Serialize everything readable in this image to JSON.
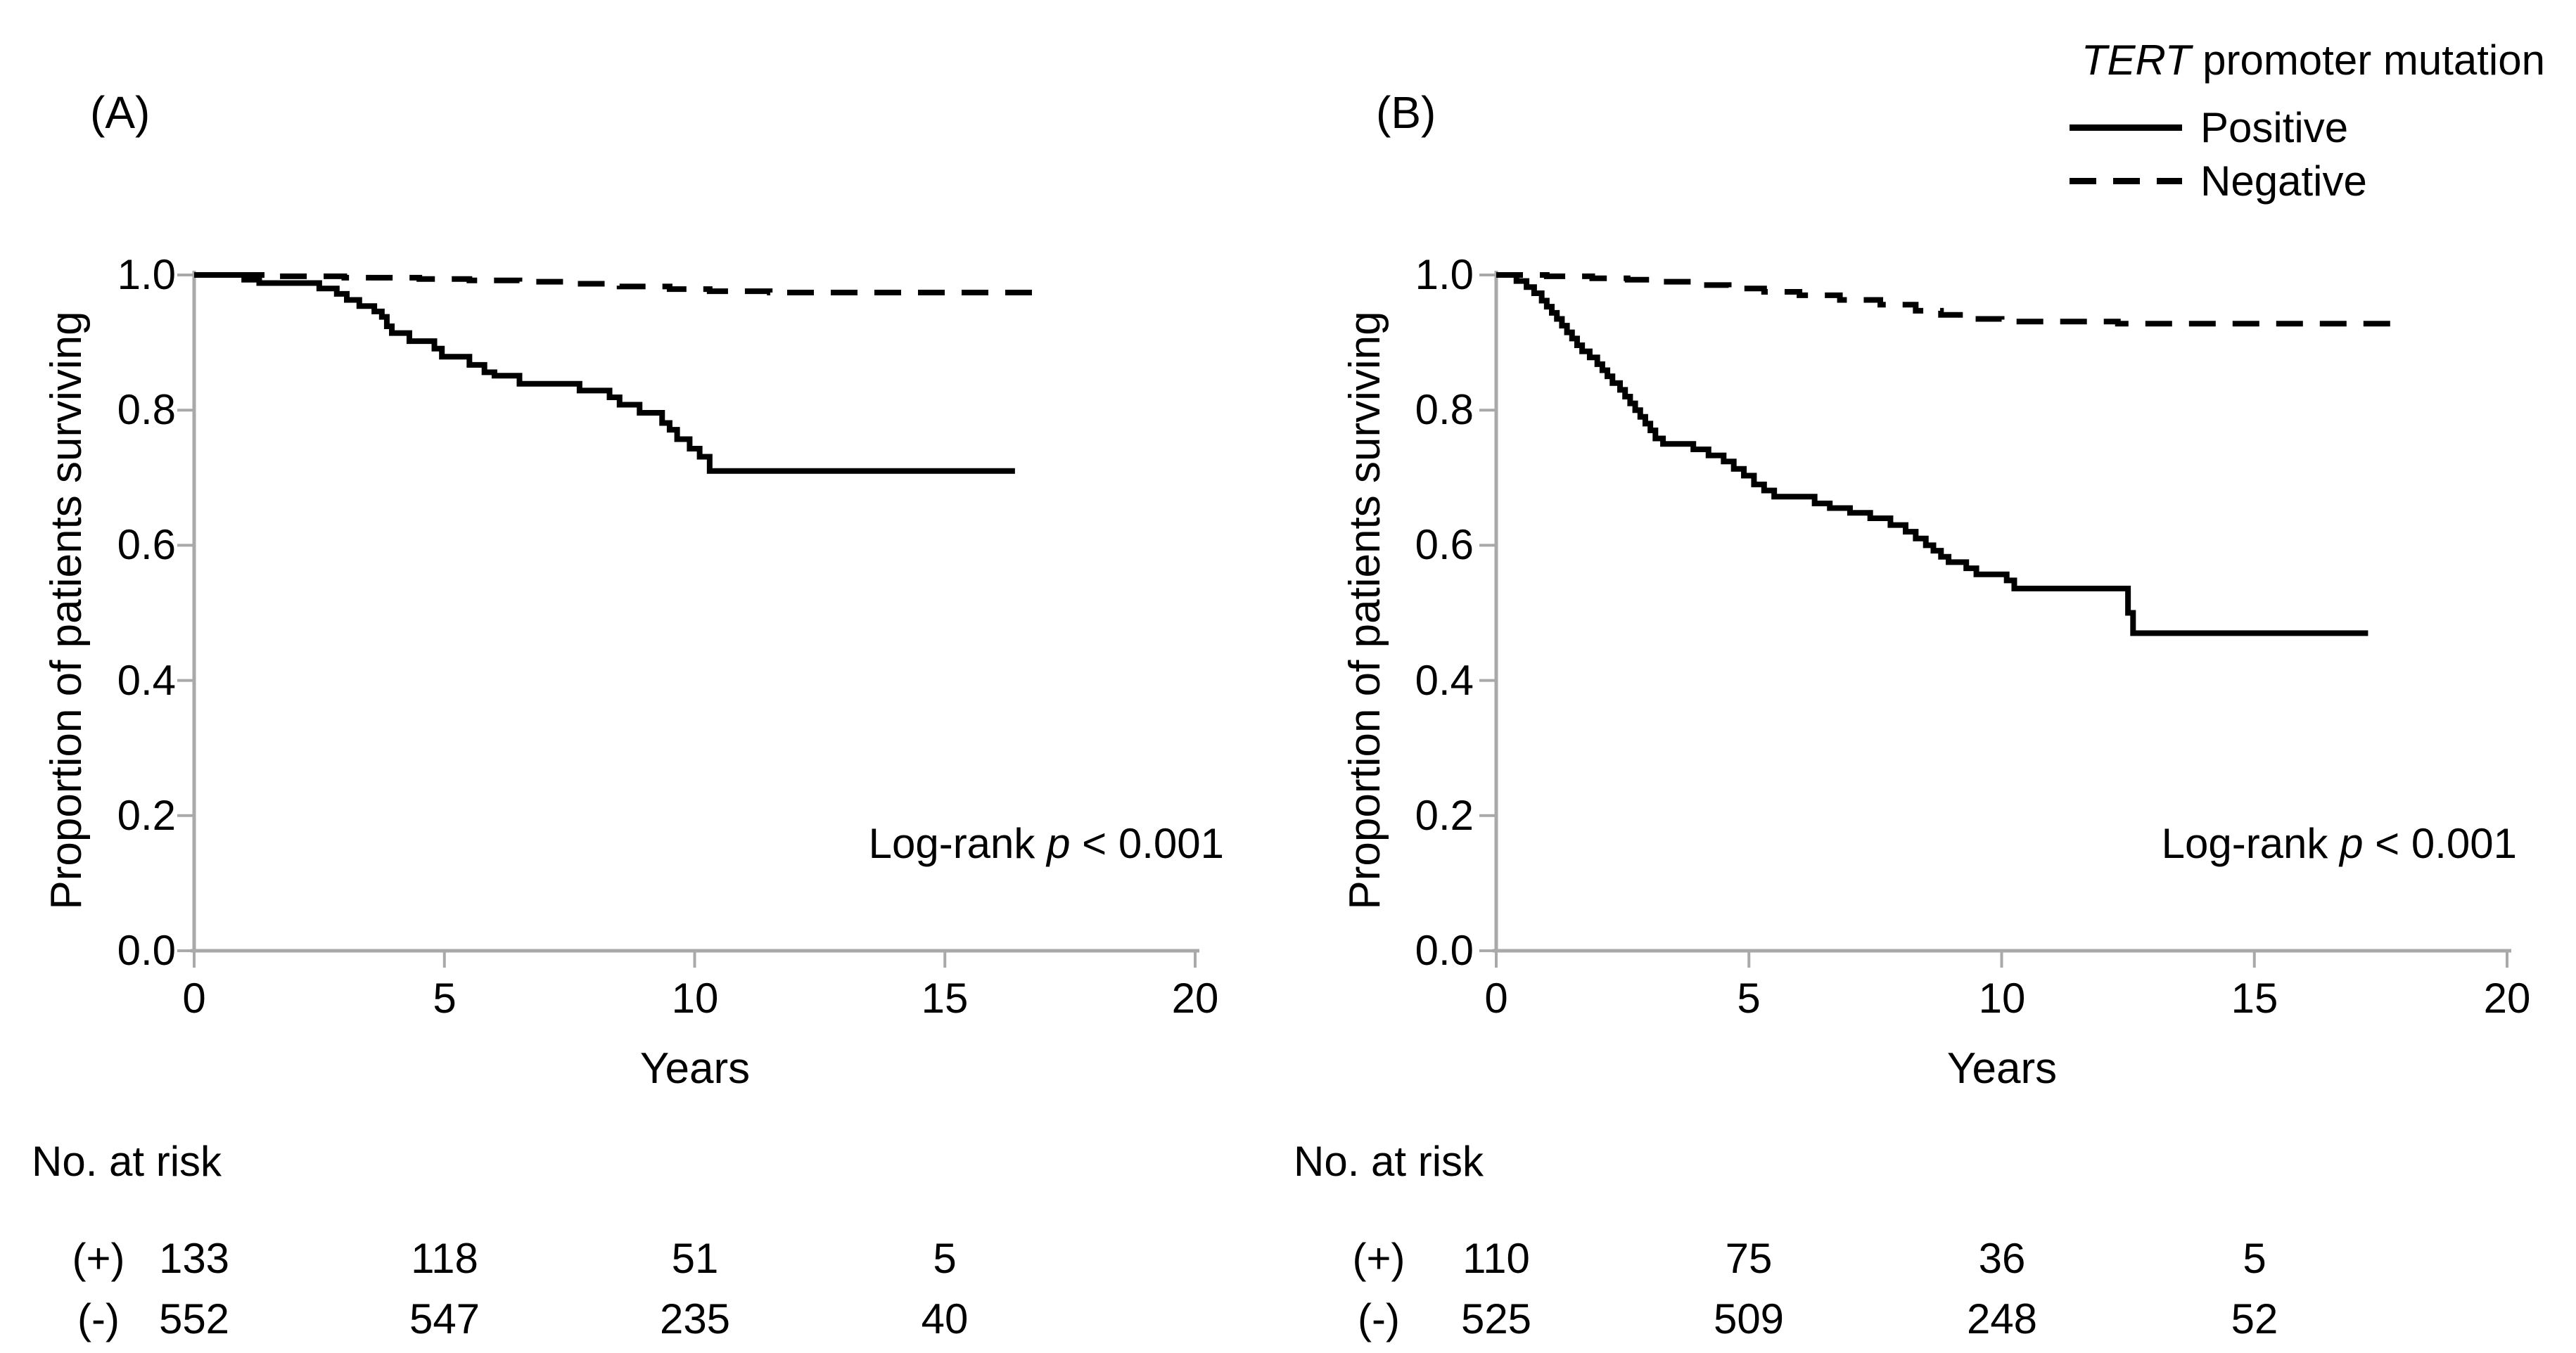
{
  "colors": {
    "curve": "#000000",
    "axis": "#a9a9a9",
    "text": "#000000",
    "background": "#ffffff"
  },
  "legend": {
    "title_italic": "TERT",
    "title_rest": " promoter mutation",
    "items": [
      {
        "label": "Positive",
        "line": "solid"
      },
      {
        "label": "Negative",
        "line": "dashed"
      }
    ]
  },
  "chart_data": [
    {
      "panel_label": "(A)",
      "type": "line",
      "subtype": "kaplan-meier-step",
      "xlabel": "Years",
      "ylabel": "Proportion of patients surviving",
      "xlim": [
        0,
        20
      ],
      "ylim": [
        0.0,
        1.0
      ],
      "grid": false,
      "legend_position": "top-right-of-figure",
      "x_ticks": {
        "values": [
          0,
          5,
          10,
          15,
          20
        ],
        "labels": [
          "0",
          "5",
          "10",
          "15",
          "20"
        ]
      },
      "y_ticks": {
        "values": [
          1.0,
          0.8,
          0.6,
          0.4,
          0.2,
          0.0
        ],
        "labels": [
          "1.0",
          "0.8",
          "0.6",
          "0.4",
          "0.2",
          "0.0"
        ]
      },
      "annotation": {
        "prefix": "Log-rank ",
        "italic": "p",
        "suffix": " < 0.001"
      },
      "series": [
        {
          "name": "Positive",
          "line": "solid",
          "points": [
            [
              0,
              1
            ],
            [
              1,
              0.993
            ],
            [
              1.3,
              0.988
            ],
            [
              2.5,
              0.98
            ],
            [
              2.85,
              0.972
            ],
            [
              3.05,
              0.963
            ],
            [
              3.3,
              0.954
            ],
            [
              3.6,
              0.946
            ],
            [
              3.75,
              0.938
            ],
            [
              3.85,
              0.924
            ],
            [
              3.95,
              0.914
            ],
            [
              4.3,
              0.902
            ],
            [
              4.8,
              0.891
            ],
            [
              4.95,
              0.879
            ],
            [
              5.5,
              0.867
            ],
            [
              5.8,
              0.856
            ],
            [
              6.0,
              0.851
            ],
            [
              6.5,
              0.839
            ],
            [
              7.7,
              0.829
            ],
            [
              8.3,
              0.819
            ],
            [
              8.5,
              0.808
            ],
            [
              8.9,
              0.796
            ],
            [
              9.35,
              0.781
            ],
            [
              9.5,
              0.771
            ],
            [
              9.65,
              0.757
            ],
            [
              9.9,
              0.743
            ],
            [
              10.1,
              0.731
            ],
            [
              10.3,
              0.71
            ],
            [
              16.4,
              0.71
            ]
          ]
        },
        {
          "name": "Negative",
          "line": "dashed",
          "points": [
            [
              0,
              1
            ],
            [
              1.6,
              0.998
            ],
            [
              3.0,
              0.996
            ],
            [
              4.5,
              0.994
            ],
            [
              5.5,
              0.992
            ],
            [
              6.5,
              0.99
            ],
            [
              7.5,
              0.987
            ],
            [
              8.5,
              0.983
            ],
            [
              9.5,
              0.979
            ],
            [
              10.3,
              0.976
            ],
            [
              11.5,
              0.974
            ],
            [
              16.8,
              0.974
            ]
          ]
        }
      ],
      "risk_table": {
        "title": "No. at risk",
        "time_points": [
          0,
          5,
          10,
          15
        ],
        "rows": [
          {
            "label": "(+)",
            "values": [
              "133",
              "118",
              "51",
              "5"
            ]
          },
          {
            "label": "(-)",
            "values": [
              "552",
              "547",
              "235",
              "40"
            ]
          }
        ]
      }
    },
    {
      "panel_label": "(B)",
      "type": "line",
      "subtype": "kaplan-meier-step",
      "xlabel": "Years",
      "ylabel": "Proportion of patients surviving",
      "xlim": [
        0,
        20
      ],
      "ylim": [
        0.0,
        1.0
      ],
      "grid": false,
      "x_ticks": {
        "values": [
          0,
          5,
          10,
          15,
          20
        ],
        "labels": [
          "0",
          "5",
          "10",
          "15",
          "20"
        ]
      },
      "y_ticks": {
        "values": [
          1.0,
          0.8,
          0.6,
          0.4,
          0.2,
          0.0
        ],
        "labels": [
          "1.0",
          "0.8",
          "0.6",
          "0.4",
          "0.2",
          "0.0"
        ]
      },
      "annotation": {
        "prefix": "Log-rank ",
        "italic": "p",
        "suffix": " < 0.001"
      },
      "series": [
        {
          "name": "Positive",
          "line": "solid",
          "points": [
            [
              0,
              1
            ],
            [
              0.4,
              0.991
            ],
            [
              0.6,
              0.982
            ],
            [
              0.75,
              0.973
            ],
            [
              0.9,
              0.962
            ],
            [
              1.0,
              0.953
            ],
            [
              1.1,
              0.944
            ],
            [
              1.2,
              0.935
            ],
            [
              1.3,
              0.925
            ],
            [
              1.4,
              0.915
            ],
            [
              1.5,
              0.906
            ],
            [
              1.6,
              0.896
            ],
            [
              1.7,
              0.887
            ],
            [
              1.85,
              0.878
            ],
            [
              2.0,
              0.868
            ],
            [
              2.1,
              0.859
            ],
            [
              2.2,
              0.85
            ],
            [
              2.3,
              0.84
            ],
            [
              2.45,
              0.83
            ],
            [
              2.55,
              0.82
            ],
            [
              2.65,
              0.81
            ],
            [
              2.75,
              0.8
            ],
            [
              2.85,
              0.79
            ],
            [
              2.95,
              0.78
            ],
            [
              3.05,
              0.77
            ],
            [
              3.15,
              0.758
            ],
            [
              3.3,
              0.75
            ],
            [
              3.9,
              0.742
            ],
            [
              4.2,
              0.733
            ],
            [
              4.5,
              0.724
            ],
            [
              4.7,
              0.713
            ],
            [
              4.9,
              0.703
            ],
            [
              5.1,
              0.69
            ],
            [
              5.3,
              0.681
            ],
            [
              5.5,
              0.672
            ],
            [
              6.3,
              0.662
            ],
            [
              6.6,
              0.655
            ],
            [
              7.0,
              0.648
            ],
            [
              7.4,
              0.64
            ],
            [
              7.8,
              0.63
            ],
            [
              8.1,
              0.62
            ],
            [
              8.3,
              0.61
            ],
            [
              8.5,
              0.6
            ],
            [
              8.65,
              0.592
            ],
            [
              8.8,
              0.583
            ],
            [
              8.95,
              0.575
            ],
            [
              9.3,
              0.566
            ],
            [
              9.5,
              0.557
            ],
            [
              10.1,
              0.548
            ],
            [
              10.25,
              0.536
            ],
            [
              12.5,
              0.5
            ],
            [
              12.6,
              0.47
            ],
            [
              17.25,
              0.47
            ]
          ]
        },
        {
          "name": "Negative",
          "line": "dashed",
          "points": [
            [
              0,
              1
            ],
            [
              1.0,
              0.998
            ],
            [
              1.9,
              0.995
            ],
            [
              2.6,
              0.993
            ],
            [
              3.3,
              0.99
            ],
            [
              4.0,
              0.985
            ],
            [
              4.6,
              0.98
            ],
            [
              5.3,
              0.975
            ],
            [
              6.0,
              0.97
            ],
            [
              6.8,
              0.963
            ],
            [
              7.6,
              0.956
            ],
            [
              8.3,
              0.947
            ],
            [
              8.8,
              0.941
            ],
            [
              9.3,
              0.935
            ],
            [
              10.0,
              0.931
            ],
            [
              12.3,
              0.928
            ],
            [
              17.85,
              0.928
            ]
          ]
        }
      ],
      "risk_table": {
        "title": "No. at risk",
        "time_points": [
          0,
          5,
          10,
          15
        ],
        "rows": [
          {
            "label": "(+)",
            "values": [
              "110",
              "75",
              "36",
              "5"
            ]
          },
          {
            "label": "(-)",
            "values": [
              "525",
              "509",
              "248",
              "52"
            ]
          }
        ]
      }
    }
  ]
}
